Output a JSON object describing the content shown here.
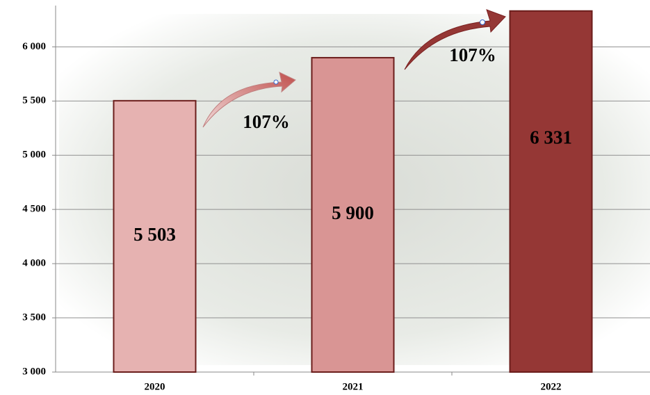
{
  "chart_data": {
    "type": "bar",
    "categories": [
      "2020",
      "2021",
      "2022"
    ],
    "values": [
      5503,
      5900,
      6331
    ],
    "value_labels": [
      "5 503",
      "5 900",
      "6 331"
    ],
    "colors": [
      "#e6b2b1",
      "#d99594",
      "#953735"
    ],
    "ylim": [
      3000,
      6400
    ],
    "yticks": [
      {
        "value": 3000,
        "label": "3 000"
      },
      {
        "value": 3500,
        "label": "3 500"
      },
      {
        "value": 4000,
        "label": "4 000"
      },
      {
        "value": 4500,
        "label": "4 500"
      },
      {
        "value": 5000,
        "label": "5 000"
      },
      {
        "value": 5500,
        "label": "5 500"
      },
      {
        "value": 6000,
        "label": "6 000"
      }
    ],
    "grid": true,
    "annotations": [
      "107%",
      "107%"
    ]
  }
}
